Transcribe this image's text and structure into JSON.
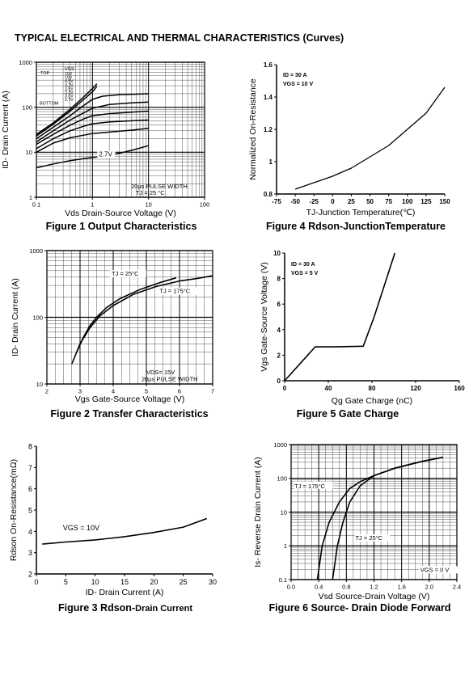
{
  "page": {
    "title": "TYPICAL ELECTRICAL AND THERMAL CHARACTERISTICS (Curves)"
  },
  "chart_data": [
    {
      "id": "fig1",
      "type": "line",
      "caption": "Figure 1 Output Characteristics",
      "xlabel": "Vds Drain-Source Voltage (V)",
      "ylabel": "ID- Drain Current (A)",
      "xscale": "log",
      "yscale": "log",
      "xlim": [
        0.1,
        100
      ],
      "ylim": [
        1,
        1000
      ],
      "xticks": [
        0.1,
        1,
        10,
        100
      ],
      "yticks": [
        1,
        10,
        100,
        1000
      ],
      "grid": true,
      "legend_title": "VGS",
      "legend": [
        "15V",
        "10V",
        "4.5V",
        "3.7V",
        "3.5V",
        "3.3V",
        "3.0V",
        "2.7V"
      ],
      "legend_top": "TOP",
      "legend_bottom": "BOTTOM",
      "annotations": [
        "2.7V",
        "20µs PULSE WIDTH",
        "TJ = 25 °C"
      ],
      "series": [
        {
          "x": [
            0.1,
            0.2,
            0.4,
            0.7,
            1.0,
            1.2
          ],
          "y": [
            25,
            45,
            90,
            170,
            260,
            330
          ]
        },
        {
          "x": [
            0.1,
            0.2,
            0.4,
            0.7,
            1.0,
            1.2
          ],
          "y": [
            23,
            42,
            82,
            150,
            220,
            290
          ]
        },
        {
          "x": [
            0.1,
            0.2,
            0.4,
            0.7,
            1.0,
            1.5,
            3,
            6,
            10
          ],
          "y": [
            20,
            36,
            65,
            110,
            150,
            175,
            190,
            195,
            200
          ]
        },
        {
          "x": [
            0.1,
            0.2,
            0.4,
            0.7,
            1.0,
            2,
            5,
            10
          ],
          "y": [
            17,
            30,
            52,
            75,
            95,
            115,
            125,
            130
          ]
        },
        {
          "x": [
            0.1,
            0.2,
            0.4,
            0.7,
            1.0,
            2,
            5,
            10
          ],
          "y": [
            15,
            25,
            40,
            55,
            65,
            72,
            78,
            82
          ]
        },
        {
          "x": [
            0.1,
            0.2,
            0.4,
            0.7,
            1.0,
            2,
            5,
            10
          ],
          "y": [
            12,
            20,
            30,
            38,
            43,
            47,
            50,
            52
          ]
        },
        {
          "x": [
            0.1,
            0.2,
            0.4,
            0.7,
            1.0,
            2,
            5,
            10
          ],
          "y": [
            10,
            16,
            21,
            24,
            26,
            28,
            31,
            34
          ]
        },
        {
          "x": [
            0.1,
            0.2,
            0.4,
            0.7,
            1.0,
            2,
            5,
            10
          ],
          "y": [
            4.5,
            5.5,
            6.5,
            7.2,
            7.7,
            8.5,
            11,
            14
          ]
        }
      ]
    },
    {
      "id": "fig4",
      "type": "line",
      "caption": "Figure 4 Rdson-JunctionTemperature",
      "xlabel": "TJ-Junction Temperature(℃)",
      "ylabel": "Normalized On-Resistance",
      "xlim": [
        -75,
        150
      ],
      "ylim": [
        0.8,
        1.6
      ],
      "xticks": [
        -75,
        -50,
        -25,
        0,
        25,
        50,
        75,
        100,
        125,
        150
      ],
      "yticks": [
        0.8,
        1.0,
        1.2,
        1.4,
        1.6
      ],
      "annotations": [
        "ID = 30 A",
        "VGS = 10 V"
      ],
      "series": [
        {
          "x": [
            -50,
            -25,
            0,
            25,
            50,
            75,
            100,
            125,
            150
          ],
          "y": [
            0.83,
            0.87,
            0.91,
            0.96,
            1.03,
            1.1,
            1.2,
            1.3,
            1.46
          ]
        }
      ]
    },
    {
      "id": "fig2",
      "type": "line",
      "caption": "Figure 2 Transfer Characteristics",
      "xlabel": "Vgs Gate-Source Voltage (V)",
      "ylabel": "ID- Drain Current (A)",
      "xlim": [
        2.0,
        7.0
      ],
      "ylim": [
        10,
        1000
      ],
      "yscale": "log",
      "xticks": [
        2.0,
        3.0,
        4.0,
        5.0,
        6.0,
        7.0
      ],
      "yticks": [
        10,
        100,
        1000
      ],
      "grid": true,
      "annotations": [
        "VDS= 15V",
        "20µs PULSE WIDTH"
      ],
      "series": [
        {
          "name": "TJ = 25°C",
          "x": [
            2.9,
            3.1,
            3.3,
            3.5,
            3.8,
            4.2,
            4.8,
            5.4,
            5.9
          ],
          "y": [
            30,
            50,
            75,
            100,
            140,
            190,
            260,
            330,
            390
          ]
        },
        {
          "name": "TJ = 175°C",
          "x": [
            2.75,
            3.0,
            3.3,
            3.6,
            4.0,
            4.6,
            5.3,
            6.0,
            6.5,
            7.0
          ],
          "y": [
            20,
            40,
            70,
            105,
            150,
            220,
            290,
            350,
            380,
            420
          ]
        }
      ]
    },
    {
      "id": "fig5",
      "type": "line",
      "caption": "Figure 5 Gate Charge",
      "xlabel": "Qg Gate Charge (nC)",
      "ylabel": "Vgs Gate-Source Voltage (V)",
      "xlim": [
        0,
        160
      ],
      "ylim": [
        0,
        10
      ],
      "xticks": [
        0,
        40,
        80,
        120,
        160
      ],
      "yticks": [
        0,
        2,
        4,
        6,
        8,
        10
      ],
      "annotations": [
        "ID = 30 A",
        "VGS = 5 V"
      ],
      "series": [
        {
          "x": [
            0,
            28,
            45,
            72,
            82,
            101
          ],
          "y": [
            0,
            2.65,
            2.65,
            2.7,
            5.0,
            10
          ]
        }
      ]
    },
    {
      "id": "fig3",
      "type": "line",
      "caption_main": "Figure 3 Rdson-",
      "caption_sub": "Drain Current",
      "xlabel": "ID- Drain Current (A)",
      "ylabel": "Rdson On-Resistance(mΩ)",
      "xlim": [
        0,
        30
      ],
      "ylim": [
        2,
        8
      ],
      "xticks": [
        0,
        5,
        10,
        15,
        20,
        25,
        30
      ],
      "yticks": [
        2,
        3,
        4,
        5,
        6,
        7,
        8
      ],
      "annotations": [
        "VGS = 10V"
      ],
      "series": [
        {
          "x": [
            1,
            5,
            10,
            15,
            20,
            25,
            29
          ],
          "y": [
            3.4,
            3.5,
            3.6,
            3.75,
            3.95,
            4.2,
            4.6
          ]
        }
      ]
    },
    {
      "id": "fig6",
      "type": "line",
      "caption": "Figure 6 Source- Drain Diode Forward",
      "xlabel": "Vsd Source-Drain Voltage (V)",
      "ylabel": "Is- Reverse Drain Current (A)",
      "xlim": [
        0,
        2.4
      ],
      "ylim": [
        0.1,
        1000
      ],
      "yscale": "log",
      "xticks": [
        0,
        0.4,
        0.8,
        1.2,
        1.6,
        2.0,
        2.4
      ],
      "xtick_labels": [
        "0.0",
        "0.4",
        "0.8",
        "1.2",
        "1.6",
        "2.0",
        "2.4"
      ],
      "yticks": [
        0.1,
        1,
        10,
        100,
        1000
      ],
      "ytick_labels": [
        "0.1",
        "1",
        "10",
        "100",
        "1000"
      ],
      "grid": true,
      "annotations": [
        "VGS = 0 V"
      ],
      "series": [
        {
          "name": "TJ = 175°C",
          "x": [
            0.38,
            0.45,
            0.55,
            0.7,
            0.85,
            1.0,
            1.2,
            1.5,
            1.9,
            2.2
          ],
          "y": [
            0.1,
            1,
            5,
            20,
            50,
            80,
            120,
            200,
            320,
            420
          ]
        },
        {
          "name": "TJ = 25°C",
          "x": [
            0.6,
            0.67,
            0.75,
            0.85,
            1.0,
            1.2,
            1.5,
            1.9,
            2.2
          ],
          "y": [
            0.1,
            1,
            5,
            20,
            60,
            120,
            200,
            320,
            420
          ]
        }
      ]
    }
  ]
}
